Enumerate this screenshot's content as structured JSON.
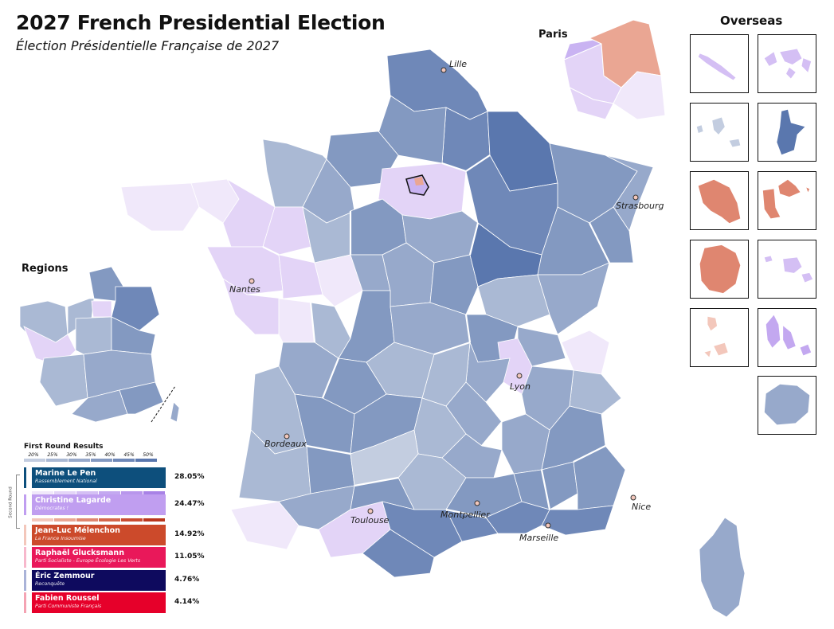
{
  "header": {
    "title": "2027 French Presidential Election",
    "subtitle": "Élection Présidentielle Française de 2027"
  },
  "sections": {
    "paris": "Paris",
    "overseas": "Overseas",
    "regions": "Regions"
  },
  "cities": [
    {
      "name": "Lille"
    },
    {
      "name": "Strasbourg"
    },
    {
      "name": "Nantes"
    },
    {
      "name": "Lyon"
    },
    {
      "name": "Bordeaux"
    },
    {
      "name": "Toulouse"
    },
    {
      "name": "Montpellier"
    },
    {
      "name": "Marseille"
    },
    {
      "name": "Nice"
    }
  ],
  "legend": {
    "title": "First Round Results",
    "scale_ticks": [
      "20%",
      "25%",
      "30%",
      "35%",
      "40%",
      "45%",
      "50%"
    ],
    "second_round_label": "Second Round",
    "candidates": [
      {
        "name": "Marine Le Pen",
        "party": "Rassemblement National",
        "percent": "28.05%",
        "color": "#0d4f7c"
      },
      {
        "name": "Christine Lagarde",
        "party": "Démocrates !",
        "percent": "24.47%",
        "color": "#c09ef0"
      },
      {
        "name": "Jean-Luc Mélenchon",
        "party": "La France Insoumise",
        "percent": "14.92%",
        "color": "#cc4a2b"
      },
      {
        "name": "Raphaël Glucksmann",
        "party": "Parti Socialiste - Europe Écologie Les Verts",
        "percent": "11.05%",
        "color": "#e9185a"
      },
      {
        "name": "Éric Zemmour",
        "party": "Reconquête",
        "percent": "4.76%",
        "color": "#0e0a5e"
      },
      {
        "name": "Fabien Roussel",
        "party": "Parti Communiste Français",
        "percent": "4.14%",
        "color": "#e6002a"
      }
    ]
  },
  "colors": {
    "lepen_scale": [
      "#c3cde0",
      "#aab9d4",
      "#97a9cb",
      "#8399c1",
      "#6f88b8",
      "#5a77ae"
    ],
    "lagarde_scale": [
      "#f0e8fa",
      "#e3d4f7",
      "#d4bff4",
      "#c3a8f0"
    ],
    "melenchon_scale": [
      "#f3c7bb",
      "#eaa693",
      "#df8670",
      "#d4674d"
    ]
  }
}
